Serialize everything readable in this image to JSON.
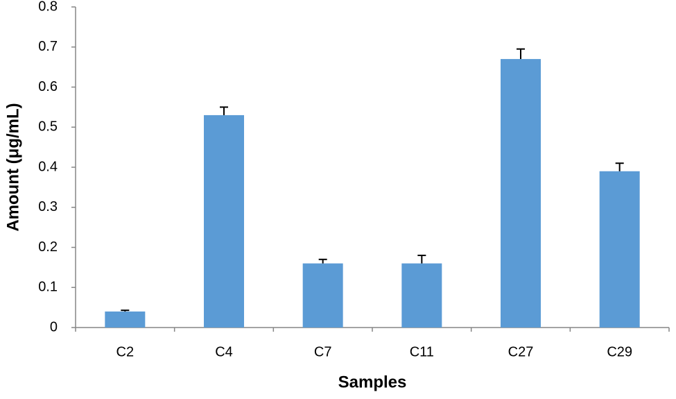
{
  "chart_data": {
    "type": "bar",
    "x_label": "Samples",
    "y_label": "Amount (μg/mL)",
    "categories": [
      "C2",
      "C4",
      "C7",
      "C11",
      "C27",
      "C29"
    ],
    "values": [
      0.04,
      0.53,
      0.16,
      0.16,
      0.67,
      0.39
    ],
    "errors": [
      0.003,
      0.02,
      0.01,
      0.02,
      0.025,
      0.02
    ],
    "color": "#5b9bd5",
    "ylim": [
      0,
      0.8
    ],
    "yticks": [
      0,
      0.1,
      0.2,
      0.3,
      0.4,
      0.5,
      0.6,
      0.7,
      0.8
    ],
    "grid": false
  }
}
